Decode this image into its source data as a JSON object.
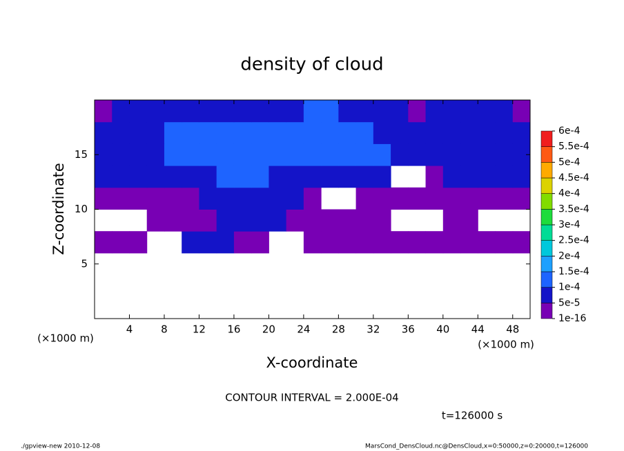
{
  "chart_data": {
    "type": "heatmap",
    "title": "density of cloud",
    "x_label": "X-coordinate",
    "y_label": "Z-coordinate",
    "x_unit": "(×1000 m)",
    "xlim": [
      0,
      50
    ],
    "ylim": [
      0,
      20
    ],
    "xticks": [
      4,
      8,
      12,
      16,
      20,
      24,
      28,
      32,
      36,
      40,
      44,
      48
    ],
    "yticks": [
      5,
      10,
      15
    ],
    "x": [
      1,
      3,
      5,
      7,
      9,
      11,
      13,
      15,
      17,
      19,
      21,
      23,
      25,
      27,
      29,
      31,
      33,
      35,
      37,
      39,
      41,
      43,
      45,
      47,
      49
    ],
    "y": [
      1,
      3,
      5,
      7,
      9,
      11,
      13,
      15,
      17,
      19
    ],
    "values": [
      [
        null,
        null,
        null,
        null,
        null,
        null,
        null,
        null,
        null,
        null,
        null,
        null,
        null,
        null,
        null,
        null,
        null,
        null,
        null,
        null,
        null,
        null,
        null,
        null,
        null
      ],
      [
        null,
        null,
        null,
        null,
        null,
        null,
        null,
        null,
        null,
        null,
        null,
        null,
        null,
        null,
        null,
        null,
        null,
        null,
        null,
        null,
        null,
        null,
        null,
        null,
        null
      ],
      [
        null,
        null,
        null,
        null,
        null,
        null,
        null,
        null,
        null,
        null,
        null,
        null,
        null,
        null,
        null,
        null,
        null,
        null,
        null,
        null,
        null,
        null,
        null,
        null,
        null
      ],
      [
        3e-05,
        3e-05,
        3e-05,
        null,
        null,
        7e-05,
        7e-05,
        7e-05,
        3e-05,
        3e-05,
        null,
        null,
        3e-05,
        3e-05,
        3e-05,
        3e-05,
        3e-05,
        3e-05,
        3e-05,
        3e-05,
        3e-05,
        3e-05,
        3e-05,
        3e-05,
        3e-05
      ],
      [
        null,
        null,
        null,
        3e-05,
        3e-05,
        3e-05,
        3e-05,
        7e-05,
        7e-05,
        7e-05,
        7e-05,
        3e-05,
        3e-05,
        3e-05,
        3e-05,
        3e-05,
        3e-05,
        null,
        null,
        null,
        3e-05,
        3e-05,
        null,
        null,
        null
      ],
      [
        3e-05,
        3e-05,
        3e-05,
        3e-05,
        3e-05,
        3e-05,
        7e-05,
        7e-05,
        7e-05,
        7e-05,
        7e-05,
        7e-05,
        3e-05,
        null,
        null,
        3e-05,
        3e-05,
        3e-05,
        3e-05,
        3e-05,
        3e-05,
        3e-05,
        3e-05,
        3e-05,
        3e-05
      ],
      [
        7e-05,
        7e-05,
        7e-05,
        7e-05,
        7e-05,
        7e-05,
        7e-05,
        0.00012,
        0.00012,
        0.00012,
        7e-05,
        7e-05,
        7e-05,
        7e-05,
        7e-05,
        7e-05,
        7e-05,
        null,
        null,
        3e-05,
        7e-05,
        7e-05,
        7e-05,
        7e-05,
        7e-05
      ],
      [
        7e-05,
        7e-05,
        7e-05,
        7e-05,
        0.00012,
        0.00012,
        0.00012,
        0.00012,
        0.00012,
        0.00012,
        0.00012,
        0.00012,
        0.00012,
        0.00012,
        0.00012,
        0.00012,
        0.00012,
        7e-05,
        7e-05,
        7e-05,
        7e-05,
        7e-05,
        7e-05,
        7e-05,
        7e-05
      ],
      [
        7e-05,
        7e-05,
        7e-05,
        7e-05,
        0.00012,
        0.00012,
        0.00012,
        0.00012,
        0.00012,
        0.00012,
        0.00012,
        0.00012,
        0.00012,
        0.00012,
        0.00012,
        0.00012,
        7e-05,
        7e-05,
        7e-05,
        7e-05,
        7e-05,
        7e-05,
        7e-05,
        7e-05,
        7e-05
      ],
      [
        3e-05,
        7e-05,
        7e-05,
        7e-05,
        7e-05,
        7e-05,
        7e-05,
        7e-05,
        7e-05,
        7e-05,
        7e-05,
        7e-05,
        0.00012,
        0.00012,
        7e-05,
        7e-05,
        7e-05,
        7e-05,
        3e-05,
        7e-05,
        7e-05,
        7e-05,
        7e-05,
        7e-05,
        3e-05
      ]
    ],
    "colorbar": {
      "levels": [
        {
          "value": 1e-16,
          "label": "1e-16"
        },
        {
          "value": 5e-05,
          "label": "5e-5"
        },
        {
          "value": 0.0001,
          "label": "1e-4"
        },
        {
          "value": 0.00015,
          "label": "1.5e-4"
        },
        {
          "value": 0.0002,
          "label": "2e-4"
        },
        {
          "value": 0.00025,
          "label": "2.5e-4"
        },
        {
          "value": 0.0003,
          "label": "3e-4"
        },
        {
          "value": 0.00035,
          "label": "3.5e-4"
        },
        {
          "value": 0.0004,
          "label": "4e-4"
        },
        {
          "value": 0.00045,
          "label": "4.5e-4"
        },
        {
          "value": 0.0005,
          "label": "5e-4"
        },
        {
          "value": 0.00055,
          "label": "5.5e-4"
        },
        {
          "value": 0.0006,
          "label": "6e-4"
        }
      ],
      "colors": [
        "#7800b4",
        "#1414c8",
        "#1e64ff",
        "#1ea0ff",
        "#00c8dc",
        "#00dc96",
        "#1edc3c",
        "#82dc00",
        "#dcd200",
        "#ffaa00",
        "#ff5a14",
        "#f01e1e",
        "#ff8c8c"
      ]
    },
    "annotations": {
      "contour": "CONTOUR INTERVAL = 2.000E-04",
      "time": "t=126000 s",
      "footer_left": "./gpview-new  2010-12-08",
      "footer_right": "MarsCond_DensCloud.nc@DensCloud,x=0:50000,z=0:20000,t=126000"
    }
  }
}
